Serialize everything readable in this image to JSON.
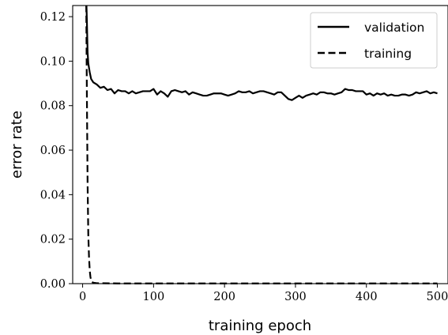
{
  "chart_data": {
    "type": "line",
    "title": "",
    "xlabel": "training epoch",
    "ylabel": "error rate",
    "xlim": [
      -14,
      515
    ],
    "ylim": [
      0.0,
      0.125
    ],
    "grid": false,
    "legend_position": "top-right",
    "xticks": [
      0,
      100,
      200,
      300,
      400,
      500
    ],
    "xtick_labels": [
      "0",
      "100",
      "200",
      "300",
      "400",
      "500"
    ],
    "yticks": [
      0.0,
      0.02,
      0.04,
      0.06,
      0.08,
      0.1,
      0.12
    ],
    "ytick_labels": [
      "0.00",
      "0.02",
      "0.04",
      "0.06",
      "0.08",
      "0.10",
      "0.12"
    ],
    "series": [
      {
        "name": "validation",
        "style": "solid",
        "color": "#000000",
        "x": [
          5,
          6,
          7,
          8,
          10,
          12,
          15,
          20,
          25,
          30,
          35,
          40,
          45,
          50,
          55,
          60,
          65,
          70,
          75,
          80,
          85,
          90,
          95,
          100,
          105,
          110,
          115,
          120,
          125,
          130,
          135,
          140,
          145,
          150,
          155,
          160,
          165,
          170,
          175,
          180,
          185,
          190,
          195,
          200,
          205,
          210,
          215,
          220,
          225,
          230,
          235,
          240,
          245,
          250,
          255,
          260,
          265,
          270,
          275,
          280,
          285,
          290,
          295,
          300,
          305,
          310,
          315,
          320,
          325,
          330,
          335,
          340,
          345,
          350,
          355,
          360,
          365,
          370,
          375,
          380,
          385,
          390,
          395,
          400,
          405,
          410,
          415,
          420,
          425,
          430,
          435,
          440,
          445,
          450,
          455,
          460,
          465,
          470,
          475,
          480,
          485,
          490,
          495,
          500
        ],
        "y": [
          0.13,
          0.118,
          0.104,
          0.099,
          0.095,
          0.092,
          0.0905,
          0.0895,
          0.088,
          0.0885,
          0.087,
          0.0875,
          0.0855,
          0.087,
          0.0865,
          0.0865,
          0.0855,
          0.0865,
          0.0855,
          0.086,
          0.0865,
          0.0865,
          0.0865,
          0.0875,
          0.085,
          0.0865,
          0.0855,
          0.084,
          0.0865,
          0.087,
          0.0865,
          0.086,
          0.0865,
          0.085,
          0.086,
          0.0855,
          0.085,
          0.0845,
          0.0845,
          0.085,
          0.0855,
          0.0855,
          0.0855,
          0.085,
          0.0845,
          0.085,
          0.0855,
          0.0865,
          0.086,
          0.086,
          0.0865,
          0.0855,
          0.086,
          0.0865,
          0.0865,
          0.086,
          0.0855,
          0.085,
          0.086,
          0.086,
          0.0845,
          0.083,
          0.0825,
          0.0835,
          0.0845,
          0.0835,
          0.0845,
          0.085,
          0.0855,
          0.085,
          0.086,
          0.086,
          0.0855,
          0.0855,
          0.085,
          0.0855,
          0.086,
          0.0875,
          0.087,
          0.087,
          0.0865,
          0.0865,
          0.0865,
          0.085,
          0.0855,
          0.0845,
          0.0855,
          0.085,
          0.0855,
          0.0845,
          0.085,
          0.0845,
          0.0845,
          0.085,
          0.085,
          0.0845,
          0.085,
          0.086,
          0.0855,
          0.086,
          0.0865,
          0.0855,
          0.086,
          0.0855
        ]
      },
      {
        "name": "training",
        "style": "dashed",
        "color": "#000000",
        "x": [
          5,
          6,
          7,
          8,
          9,
          10,
          11,
          12,
          13,
          15,
          20,
          50,
          100,
          200,
          300,
          400,
          500
        ],
        "y": [
          0.13,
          0.085,
          0.045,
          0.022,
          0.012,
          0.006,
          0.003,
          0.0015,
          0.0008,
          0.0004,
          0.0002,
          0.0001,
          0.0001,
          0.0001,
          0.0001,
          0.0001,
          0.0001
        ]
      }
    ]
  }
}
